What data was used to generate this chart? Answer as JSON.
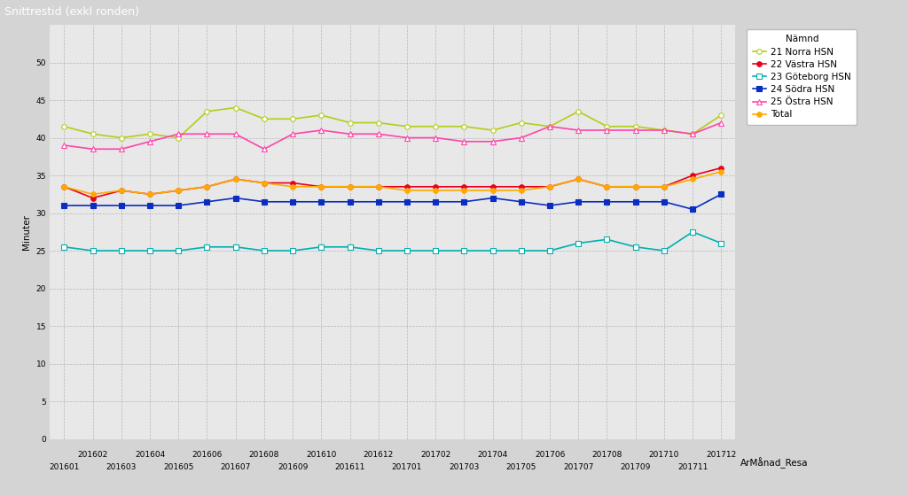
{
  "title": "Snittrestid (exkl ronden)",
  "ylabel": "Minuter",
  "xlabel": "ArMånad_Resa",
  "bg_color": "#d4d4d4",
  "plot_bg": "#d9d9d9",
  "title_bg": "#29b0d6",
  "x_labels": [
    "201601",
    "201602",
    "201603",
    "201604",
    "201605",
    "201606",
    "201607",
    "201608",
    "201609",
    "201610",
    "201611",
    "201612",
    "201701",
    "201702",
    "201703",
    "201704",
    "201705",
    "201706",
    "201707",
    "201708",
    "201709",
    "201710",
    "201711",
    "201712"
  ],
  "series": [
    {
      "name": "21 Norra HSN",
      "color": "#b5cc18",
      "marker": "o",
      "markerfacecolor": "white",
      "markersize": 4,
      "linewidth": 1.2,
      "values": [
        41.5,
        40.5,
        40.0,
        40.5,
        40.0,
        43.5,
        44.0,
        42.5,
        42.5,
        43.0,
        42.0,
        42.0,
        41.5,
        41.5,
        41.5,
        41.0,
        42.0,
        41.5,
        43.5,
        41.5,
        41.5,
        41.0,
        40.5,
        43.0
      ]
    },
    {
      "name": "22 Västra HSN",
      "color": "#e8001c",
      "marker": "o",
      "markerfacecolor": "#e8001c",
      "markersize": 4,
      "linewidth": 1.2,
      "values": [
        33.5,
        32.0,
        33.0,
        32.5,
        33.0,
        33.5,
        34.5,
        34.0,
        34.0,
        33.5,
        33.5,
        33.5,
        33.5,
        33.5,
        33.5,
        33.5,
        33.5,
        33.5,
        34.5,
        33.5,
        33.5,
        33.5,
        35.0,
        36.0
      ]
    },
    {
      "name": "23 Göteborg HSN",
      "color": "#00b0b0",
      "marker": "s",
      "markerfacecolor": "white",
      "markersize": 4,
      "linewidth": 1.2,
      "values": [
        25.5,
        25.0,
        25.0,
        25.0,
        25.0,
        25.5,
        25.5,
        25.0,
        25.0,
        25.5,
        25.5,
        25.0,
        25.0,
        25.0,
        25.0,
        25.0,
        25.0,
        25.0,
        26.0,
        26.5,
        25.5,
        25.0,
        27.5,
        26.0
      ]
    },
    {
      "name": "24 Södra HSN",
      "color": "#0a2dc2",
      "marker": "s",
      "markerfacecolor": "#0a2dc2",
      "markersize": 4,
      "linewidth": 1.2,
      "values": [
        31.0,
        31.0,
        31.0,
        31.0,
        31.0,
        31.5,
        32.0,
        31.5,
        31.5,
        31.5,
        31.5,
        31.5,
        31.5,
        31.5,
        31.5,
        32.0,
        31.5,
        31.0,
        31.5,
        31.5,
        31.5,
        31.5,
        30.5,
        32.5
      ]
    },
    {
      "name": "25 Östra HSN",
      "color": "#ff44aa",
      "marker": "^",
      "markerfacecolor": "white",
      "markersize": 5,
      "linewidth": 1.2,
      "values": [
        39.0,
        38.5,
        38.5,
        39.5,
        40.5,
        40.5,
        40.5,
        38.5,
        40.5,
        41.0,
        40.5,
        40.5,
        40.0,
        40.0,
        39.5,
        39.5,
        40.0,
        41.5,
        41.0,
        41.0,
        41.0,
        41.0,
        40.5,
        42.0
      ]
    },
    {
      "name": "Total",
      "color": "#ffaa00",
      "marker": "o",
      "markerfacecolor": "#ffaa00",
      "markersize": 4,
      "linewidth": 1.2,
      "values": [
        33.5,
        32.5,
        33.0,
        32.5,
        33.0,
        33.5,
        34.5,
        34.0,
        33.5,
        33.5,
        33.5,
        33.5,
        33.0,
        33.0,
        33.0,
        33.0,
        33.0,
        33.5,
        34.5,
        33.5,
        33.5,
        33.5,
        34.5,
        35.5
      ]
    }
  ],
  "ylim": [
    0,
    55
  ],
  "yticks": [
    0,
    5,
    10,
    15,
    20,
    25,
    30,
    35,
    40,
    45,
    50
  ],
  "grid_color": "#aaaaaa",
  "title_fontsize": 9,
  "axis_fontsize": 7.5,
  "tick_fontsize": 6.5,
  "legend_fontsize": 7.5
}
